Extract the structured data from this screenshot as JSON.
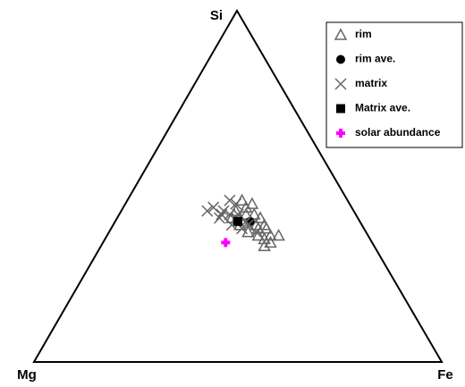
{
  "chart_data": {
    "type": "ternary",
    "axes": [
      "Si",
      "Mg",
      "Fe"
    ],
    "series": [
      {
        "name": "rim",
        "marker": "triangle",
        "color": "#666666",
        "values": [
          [
            0.46,
            0.26,
            0.28
          ],
          [
            0.45,
            0.24,
            0.31
          ],
          [
            0.43,
            0.29,
            0.28
          ],
          [
            0.42,
            0.27,
            0.31
          ],
          [
            0.42,
            0.25,
            0.33
          ],
          [
            0.41,
            0.24,
            0.35
          ],
          [
            0.39,
            0.24,
            0.37
          ],
          [
            0.38,
            0.24,
            0.38
          ],
          [
            0.36,
            0.24,
            0.4
          ],
          [
            0.36,
            0.22,
            0.42
          ],
          [
            0.35,
            0.26,
            0.39
          ],
          [
            0.36,
            0.27,
            0.37
          ],
          [
            0.37,
            0.29,
            0.34
          ],
          [
            0.39,
            0.3,
            0.31
          ],
          [
            0.41,
            0.31,
            0.28
          ],
          [
            0.39,
            0.26,
            0.35
          ],
          [
            0.34,
            0.25,
            0.41
          ],
          [
            0.33,
            0.27,
            0.4
          ],
          [
            0.38,
            0.26,
            0.36
          ],
          [
            0.44,
            0.26,
            0.3
          ]
        ]
      },
      {
        "name": "rim ave.",
        "marker": "circle",
        "color": "#000000",
        "values": [
          [
            0.4,
            0.27,
            0.33
          ]
        ]
      },
      {
        "name": "matrix",
        "marker": "x",
        "color": "#666666",
        "values": [
          [
            0.43,
            0.36,
            0.21
          ],
          [
            0.44,
            0.34,
            0.22
          ],
          [
            0.42,
            0.33,
            0.25
          ],
          [
            0.46,
            0.29,
            0.25
          ],
          [
            0.42,
            0.31,
            0.27
          ],
          [
            0.41,
            0.3,
            0.29
          ],
          [
            0.38,
            0.3,
            0.32
          ],
          [
            0.4,
            0.28,
            0.32
          ],
          [
            0.41,
            0.34,
            0.25
          ],
          [
            0.39,
            0.32,
            0.29
          ],
          [
            0.45,
            0.28,
            0.27
          ],
          [
            0.43,
            0.32,
            0.25
          ],
          [
            0.39,
            0.28,
            0.33
          ],
          [
            0.42,
            0.29,
            0.29
          ],
          [
            0.37,
            0.27,
            0.36
          ]
        ]
      },
      {
        "name": "Matrix ave.",
        "marker": "square",
        "color": "#000000",
        "values": [
          [
            0.4,
            0.3,
            0.3
          ]
        ]
      },
      {
        "name": "solar abundance",
        "marker": "plus",
        "color": "#ff00ff",
        "values": [
          [
            0.34,
            0.36,
            0.3
          ]
        ]
      }
    ]
  }
}
